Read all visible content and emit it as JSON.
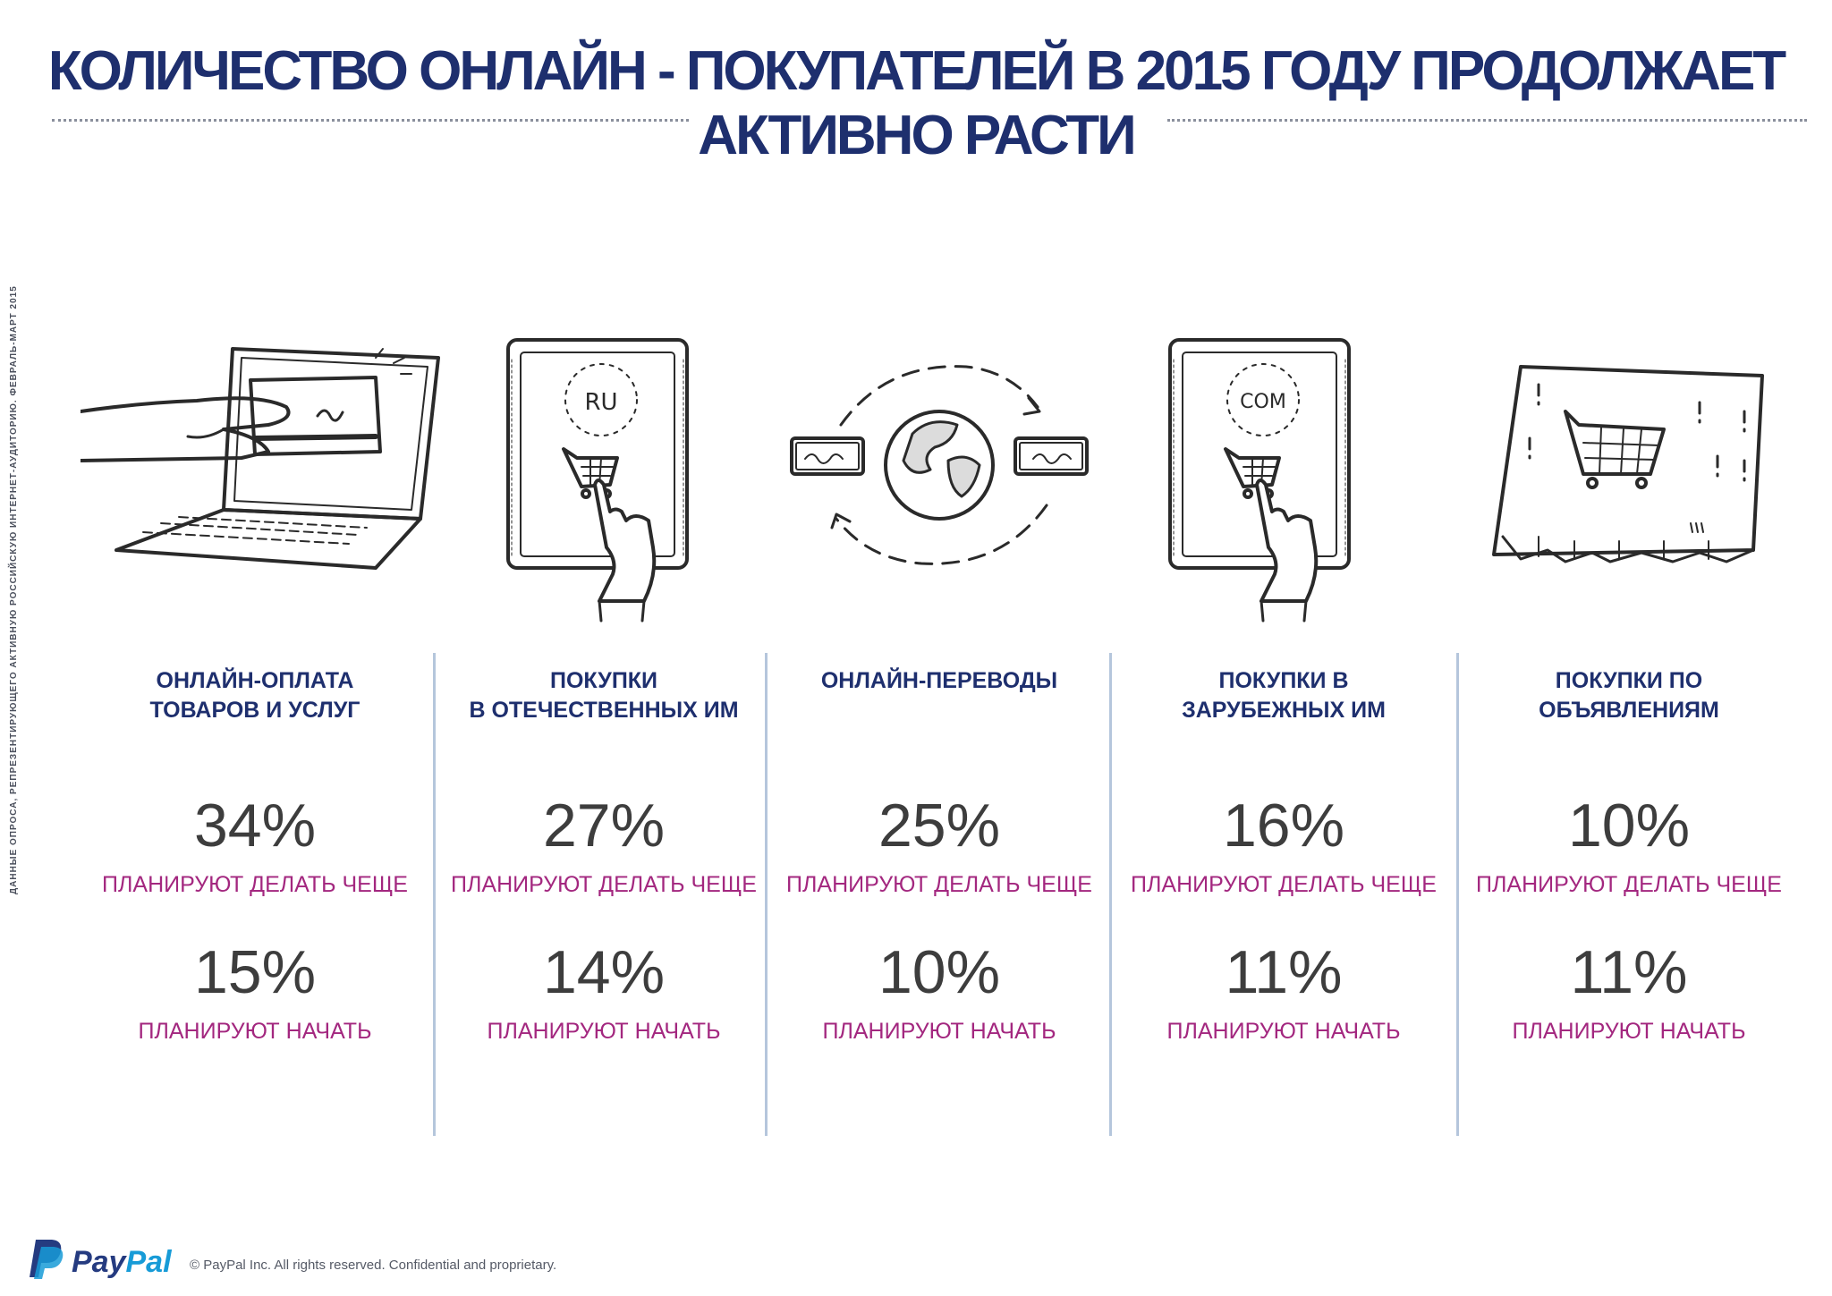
{
  "header": {
    "title_line1": "КОЛИЧЕСТВО ОНЛАЙН - ПОКУПАТЕЛЕЙ В 2015 ГОДУ ПРОДОЛЖАЕТ",
    "title_line2": "АКТИВНО РАСТИ"
  },
  "side_note": "ДАННЫЕ ОПРОСА, РЕПРЕЗЕНТИРУЮЩЕГО АКТИВНУЮ РОССИЙСКУЮ ИНТЕРНЕТ-АУДИТОРИЮ. ФЕВРАЛЬ-МАРТ 2015",
  "illustrations": {
    "tablet_ru_label": "RU",
    "tablet_com_label": "COM"
  },
  "columns": [
    {
      "title": "ОНЛАЙН-ОПЛАТА\nТОВАРОВ И УСЛУГ",
      "more_pct": "34%",
      "more_label": "ПЛАНИРУЮТ ДЕЛАТЬ ЧЕЩЕ",
      "start_pct": "15%",
      "start_label": "ПЛАНИРУЮТ НАЧАТЬ"
    },
    {
      "title": "ПОКУПКИ\nВ ОТЕЧЕСТВЕННЫХ ИМ",
      "more_pct": "27%",
      "more_label": "ПЛАНИРУЮТ ДЕЛАТЬ ЧЕЩЕ",
      "start_pct": "14%",
      "start_label": "ПЛАНИРУЮТ НАЧАТЬ"
    },
    {
      "title": "ОНЛАЙН-ПЕРЕВОДЫ",
      "more_pct": "25%",
      "more_label": "ПЛАНИРУЮТ ДЕЛАТЬ ЧЕЩЕ",
      "start_pct": "10%",
      "start_label": "ПЛАНИРУЮТ НАЧАТЬ"
    },
    {
      "title": "ПОКУПКИ В\nЗАРУБЕЖНЫХ ИМ",
      "more_pct": "16%",
      "more_label": "ПЛАНИРУЮТ ДЕЛАТЬ ЧЕЩЕ",
      "start_pct": "11%",
      "start_label": "ПЛАНИРУЮТ НАЧАТЬ"
    },
    {
      "title": "ПОКУПКИ ПО\nОБЪЯВЛЕНИЯМ",
      "more_pct": "10%",
      "more_label": "ПЛАНИРУЮТ ДЕЛАТЬ ЧЕЩЕ",
      "start_pct": "11%",
      "start_label": "ПЛАНИРУЮТ НАЧАТЬ"
    }
  ],
  "footer": {
    "brand_pay": "Pay",
    "brand_pal": "Pal",
    "copyright": "© PayPal Inc. All rights reserved. Confidential and proprietary."
  },
  "colors": {
    "title": "#1e2f6e",
    "label_magenta": "#a3277f",
    "separator": "#b5c6dc"
  }
}
